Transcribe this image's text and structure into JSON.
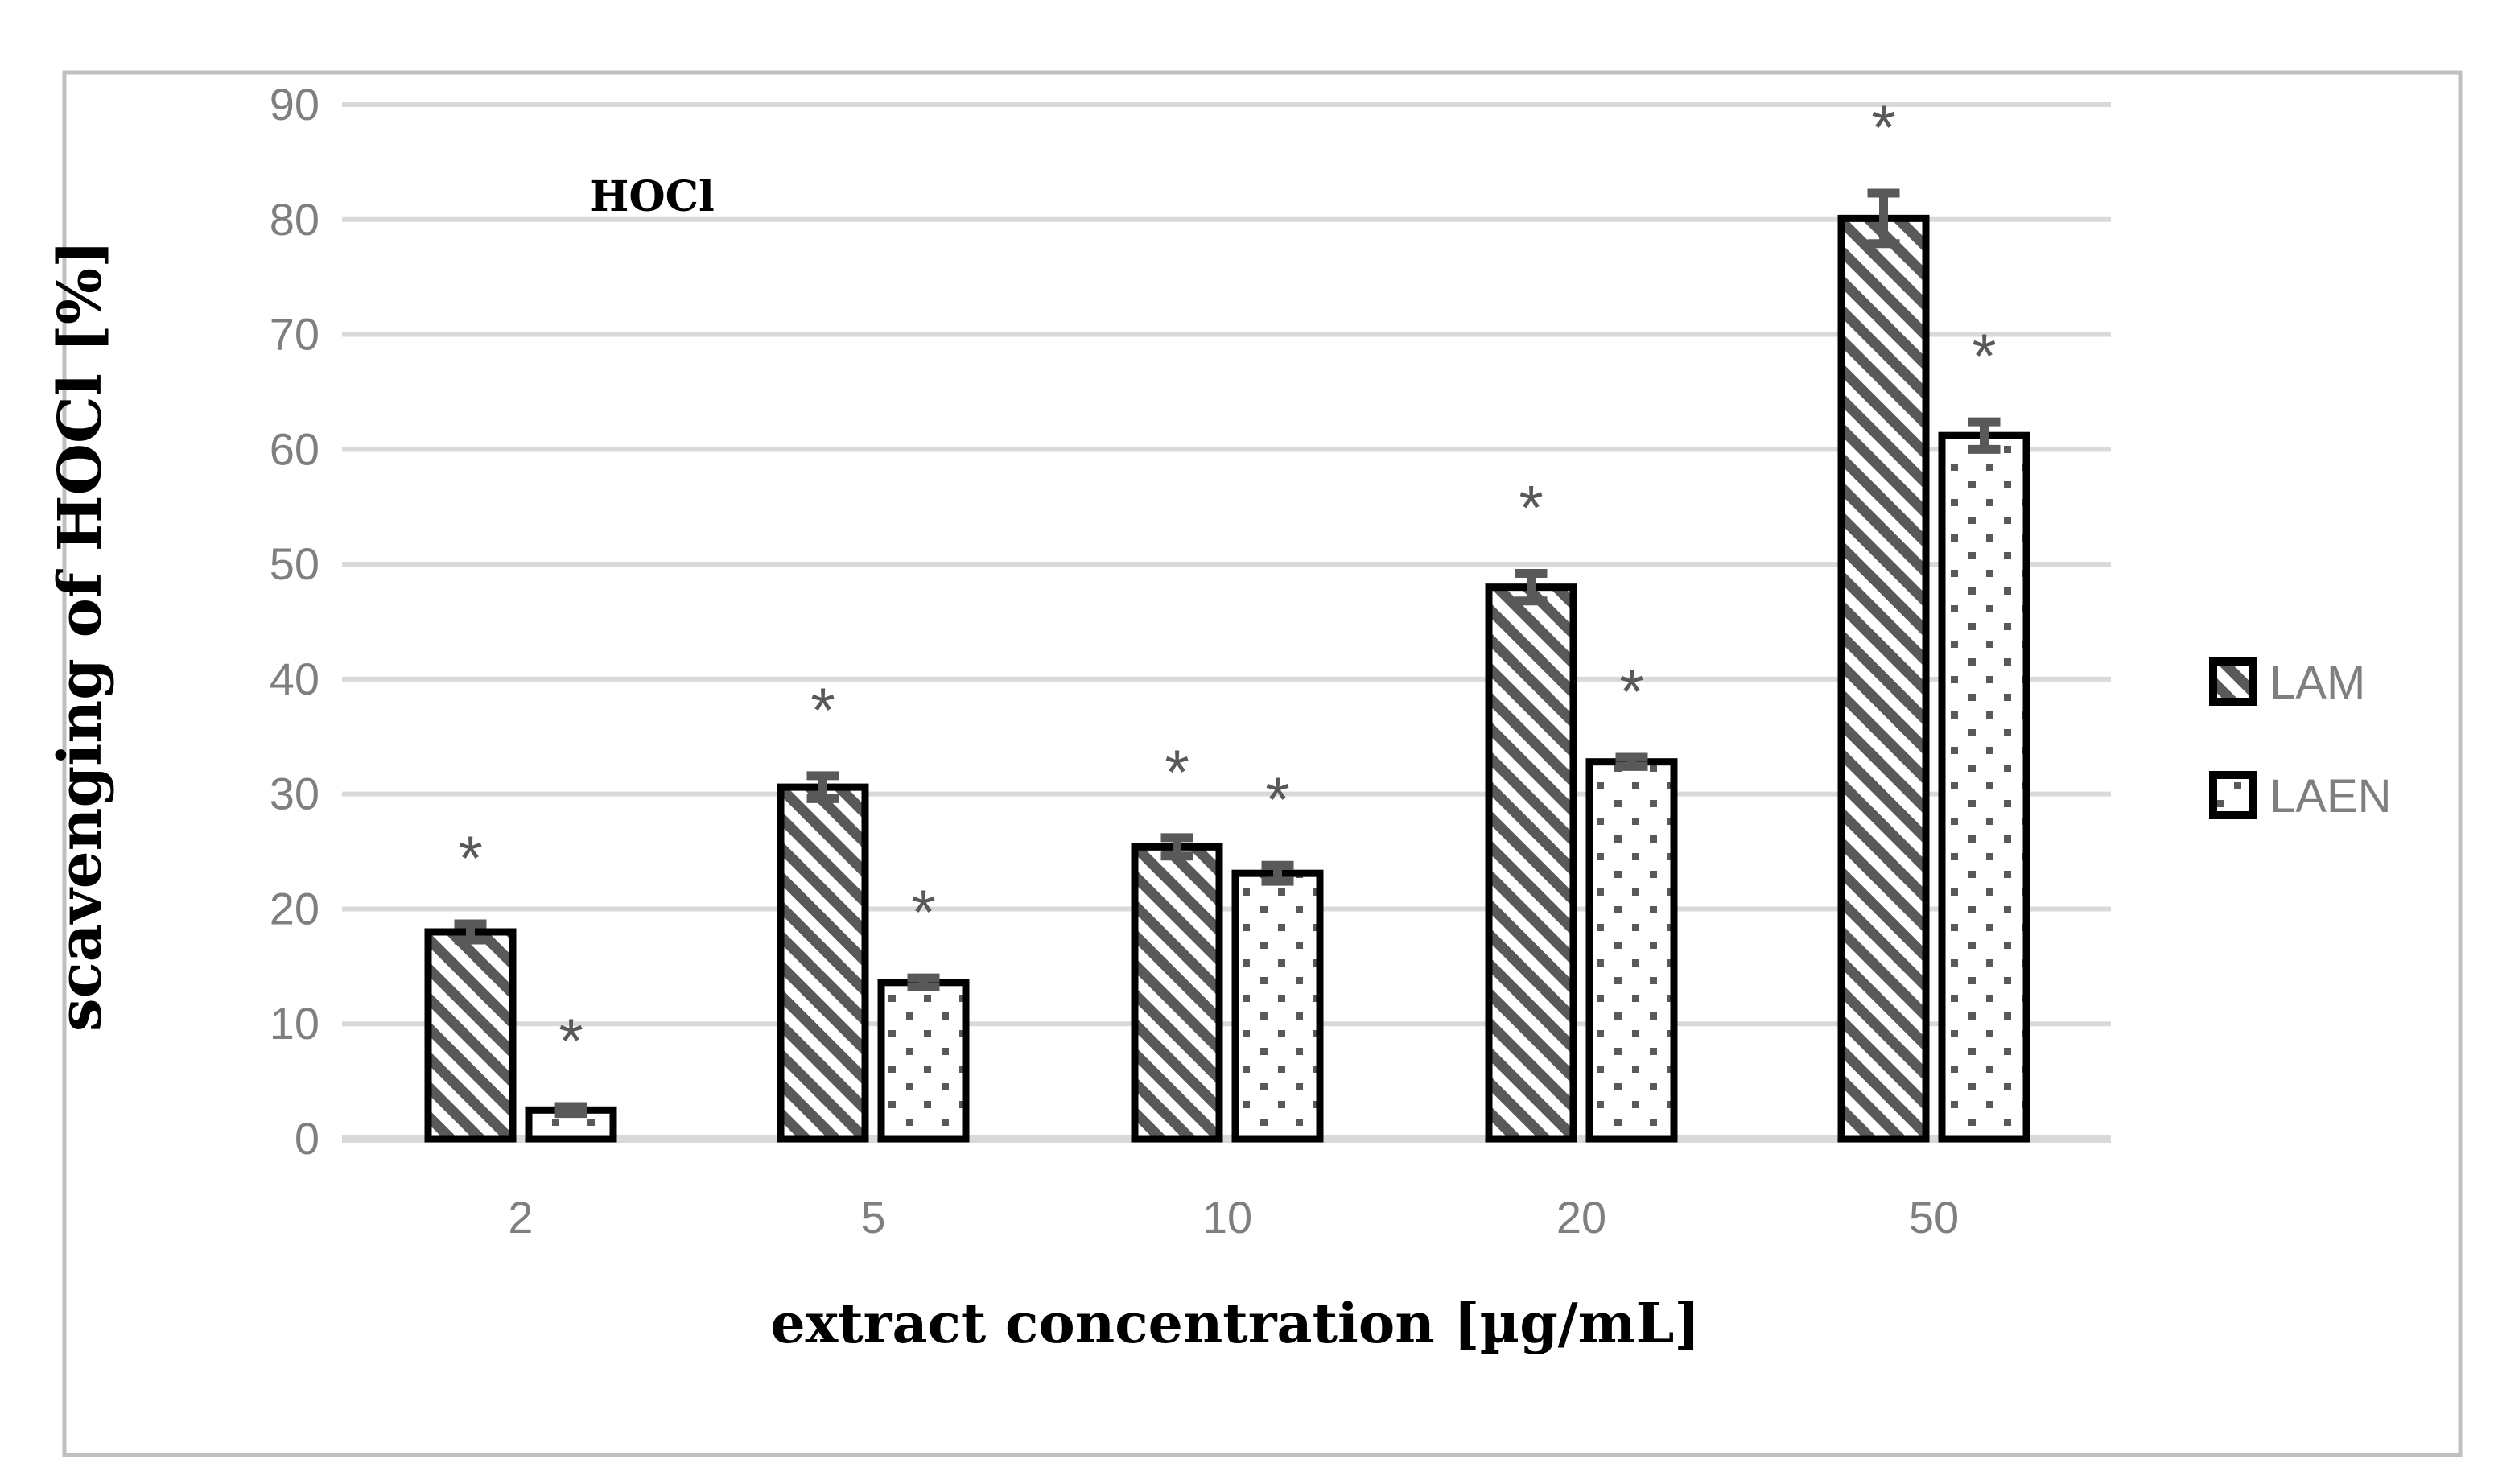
{
  "chart_data": {
    "type": "bar",
    "title": "HOCl",
    "xlabel": "extract concentration [µg/mL]",
    "ylabel": "scavenging of HOCl [%]",
    "categories": [
      "2",
      "5",
      "10",
      "20",
      "50"
    ],
    "series": [
      {
        "name": "LAM",
        "pattern": "diagonal-hatch",
        "values": [
          18.0,
          30.6,
          25.4,
          48.0,
          80.1
        ],
        "errors": [
          0.7,
          1.0,
          0.8,
          1.2,
          2.2
        ],
        "significance": [
          "*",
          "*",
          "*",
          "*",
          "*"
        ]
      },
      {
        "name": "LAEN",
        "pattern": "dots",
        "values": [
          2.5,
          13.6,
          23.1,
          32.8,
          61.2
        ],
        "errors": [
          0.3,
          0.4,
          0.7,
          0.4,
          1.2
        ],
        "significance": [
          "*",
          "*",
          "*",
          "*",
          "*"
        ]
      }
    ],
    "ylim": [
      0,
      90
    ],
    "ytick_step": 10,
    "yticks": [
      "0",
      "10",
      "20",
      "30",
      "40",
      "50",
      "60",
      "70",
      "80",
      "90"
    ],
    "grid": "horizontal",
    "legend_position": "right"
  },
  "legend": {
    "items": [
      {
        "label": "LAM",
        "swatch": "diagonal-hatch-swatch"
      },
      {
        "label": "LAEN",
        "swatch": "dots-swatch"
      }
    ]
  },
  "colors": {
    "grid": "#d9d9d9",
    "frame": "#bfbfbf",
    "tick_text": "#7f7f7f",
    "bar_border": "#000000",
    "pattern_fg": "#595959",
    "pattern_bg": "#ffffff",
    "error_bar": "#595959",
    "asterisk": "#595959",
    "title_text": "#000000"
  }
}
